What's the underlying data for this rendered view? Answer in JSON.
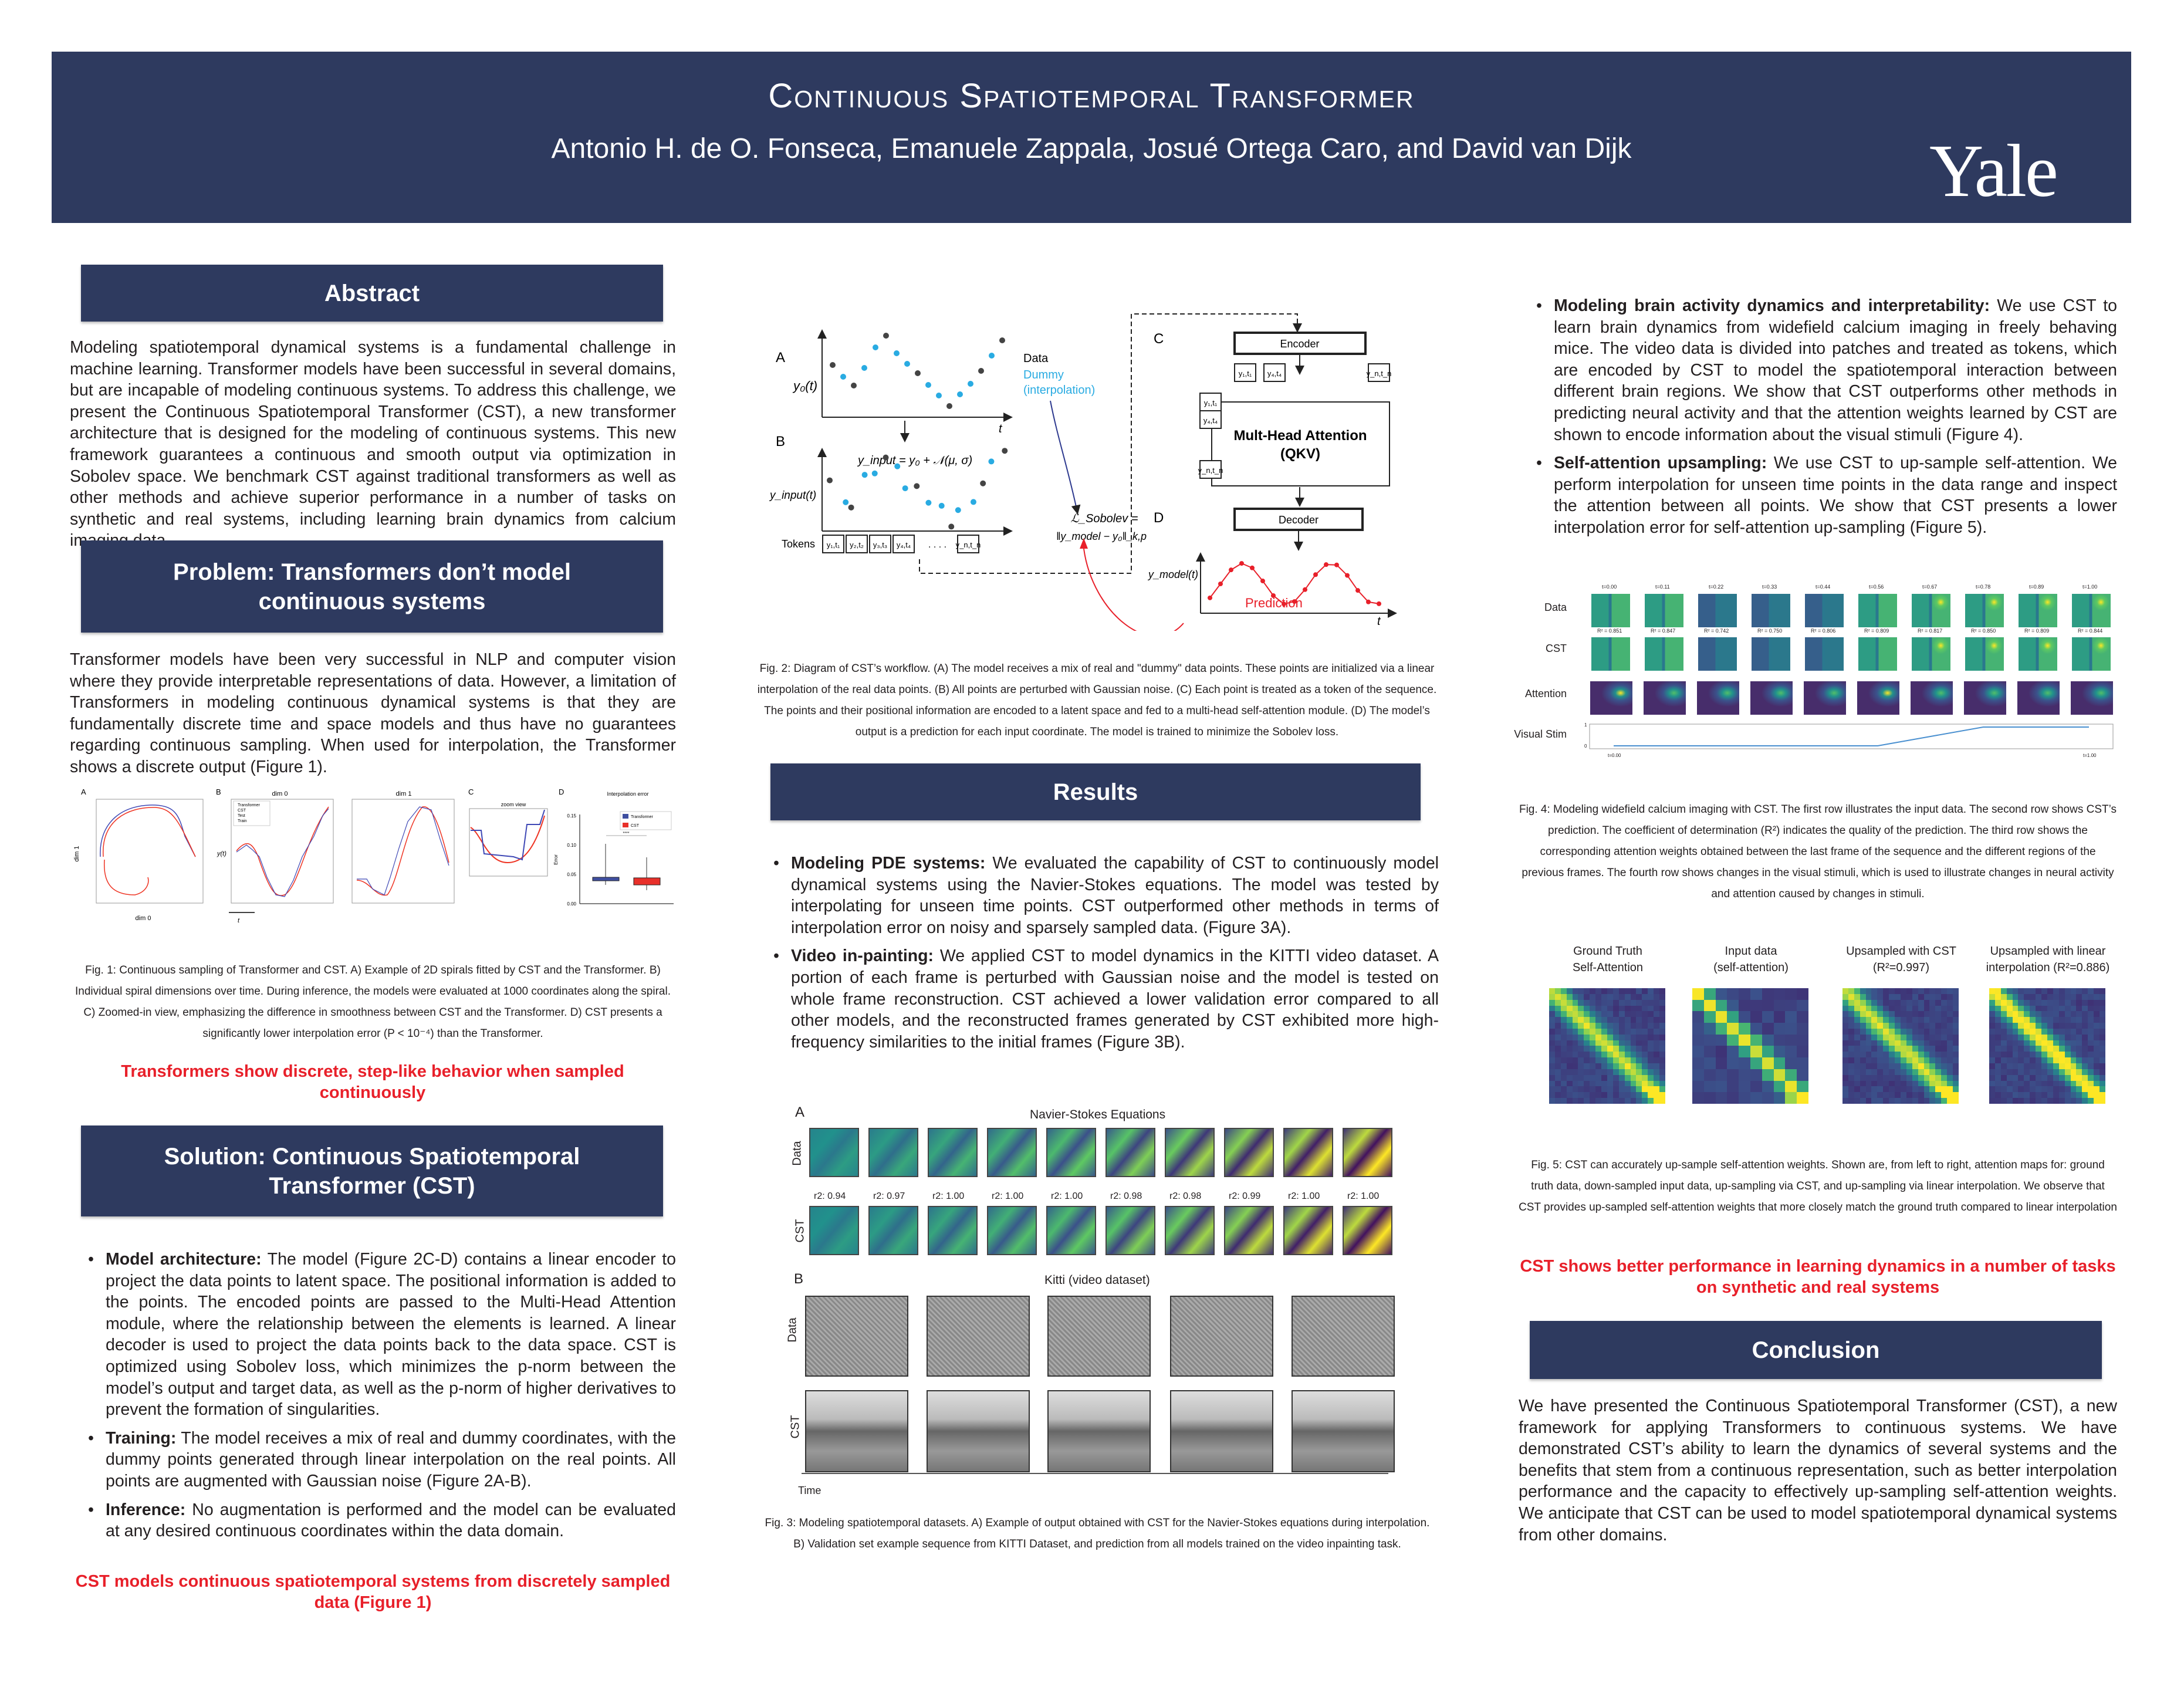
{
  "header": {
    "title": "Continuous Spatiotemporal Transformer",
    "authors": "Antonio H. de O. Fonseca, Emanuele Zappala, Josué Ortega Caro, and David van Dijk",
    "logo": "Yale"
  },
  "colors": {
    "header": "#2e3a5f",
    "highlight": "#e8202a",
    "dummy": "#29abe2"
  },
  "abstract": {
    "heading": "Abstract",
    "text": "Modeling spatiotemporal dynamical systems is a fundamental challenge in machine learning. Transformer models have been successful in several domains, but are incapable of modeling continuous systems. To address this challenge, we present the Continuous Spatiotemporal Transformer (CST), a new transformer architecture that is designed for the modeling of continuous systems. This new framework guarantees a continuous and smooth output via optimization in Sobolev space. We benchmark CST against traditional transformers as well as other methods and achieve superior performance in a number of tasks on synthetic and real systems, including learning brain dynamics from calcium imaging data."
  },
  "problem": {
    "heading": "Problem: Transformers don’t model continuous systems",
    "text": "Transformer models have been very successful in NLP and computer vision where they provide interpretable representations of data. However, a limitation of Transformers in modeling continuous dynamical systems is that they are fundamentally discrete time and space models and thus have no guarantees regarding continuous sampling. When used for interpolation, the Transformer shows a discrete output (Figure 1).",
    "highlight": "Transformers show discrete, step-like behavior when sampled continuously"
  },
  "fig1": {
    "panel_a": "A",
    "panel_b": "B",
    "panel_c": "C",
    "panel_d": "D",
    "a_xlabel": "dim 0",
    "a_ylabel": "dim 1",
    "b_title0": "dim 0",
    "b_title1": "dim 1",
    "b_ylabel": "y(t)",
    "b_xlabel": "t",
    "legend": [
      "Transformer",
      "CST",
      "Test",
      "Train"
    ],
    "c_title": "zoom view",
    "d_title": "Interpolation error",
    "d_ylabel": "Error",
    "d_ticks": [
      "0.15",
      "0.10",
      "0.05",
      "0.00"
    ],
    "d_legend": [
      "Transformer",
      "CST"
    ],
    "d_sig": "****",
    "caption": "Fig. 1: Continuous sampling of Transformer and CST. A) Example of 2D spirals fitted by CST and the Transformer. B) Individual spiral dimensions over time. During inference, the models were evaluated at 1000 coordinates along the spiral. C) Zoomed-in view, emphasizing the difference in smoothness between CST and the Transformer. D) CST presents a significantly lower interpolation error (P < 10⁻⁴) than the Transformer."
  },
  "solution": {
    "heading": "Solution: Continuous Spatiotemporal Transformer (CST)",
    "bullets": [
      {
        "title": "Model architecture:",
        "text": "The model (Figure 2C-D) contains a linear encoder to project the data points to latent space. The positional information is added to the points. The encoded points are passed to the Multi-Head Attention module, where the relationship between the elements is learned. A linear decoder is used to project the data points back to the data space. CST is optimized using Sobolev loss, which minimizes the p-norm between the model’s output and target data, as well as the p-norm of higher derivatives to prevent the formation of singularities."
      },
      {
        "title": "Training:",
        "text": "The model receives a mix of real and dummy coordinates, with the dummy points generated through linear interpolation on the real points. All points are augmented with Gaussian noise (Figure 2A-B)."
      },
      {
        "title": "Inference:",
        "text": "No augmentation is performed and the model can be evaluated at any desired continuous coordinates within the data domain."
      }
    ],
    "highlight": "CST models continuous spatiotemporal systems from discretely sampled data (Figure 1)"
  },
  "fig2": {
    "a": "A",
    "b": "B",
    "c": "C",
    "d": "D",
    "y0": "y₀(t)",
    "t": "t",
    "data": "Data",
    "dummy": "Dummy",
    "interp": "(interpolation)",
    "eq": "y_input = y₀ + 𝒩(μ, σ)",
    "yinput": "y_input(t)",
    "tokens": "Tokens",
    "token_labels": [
      "y₁,t₁",
      "y₂,t₂",
      "y₃,t₃",
      "y₄,t₄",
      "y_n,t_n"
    ],
    "dots": ". . . .",
    "encoder": "Encoder",
    "mha": "Mult-Head Attention",
    "qkv": "(QKV)",
    "decoder": "Decoder",
    "loss1": "ℒ_Sobolev =",
    "loss2": "‖y_model − y₀‖_k,p",
    "ymodel": "y_model(t)",
    "prediction": "Prediction",
    "caption": "Fig. 2: Diagram of CST’s workflow. (A) The model receives a mix of real and \"dummy\" data points. These points are initialized via a linear interpolation of the real data points. (B) All points are perturbed with Gaussian noise. (C) Each point is treated as a token of the sequence. The points and their positional information are encoded to a latent space and fed to a multi-head self-attention module. (D) The model’s output is a prediction for each input coordinate. The model is trained to minimize the Sobolev loss."
  },
  "results": {
    "heading": "Results",
    "bullets": [
      {
        "title": "Modeling PDE systems:",
        "text": "We evaluated the capability of CST to continuously model dynamical systems using the Navier-Stokes equations. The model was tested by interpolating for unseen time points. CST outperformed other methods in terms of interpolation error on noisy and sparsely sampled data. (Figure 3A)."
      },
      {
        "title": "Video in-painting:",
        "text": "We applied CST to model dynamics in the KITTI video dataset. A portion of each frame is perturbed with Gaussian noise and the model is tested on whole frame reconstruction. CST achieved a lower validation error compared to all other models, and the reconstructed frames generated by CST exhibited more high-frequency similarities to the initial frames (Figure 3B)."
      },
      {
        "title": "Modeling brain activity dynamics and interpretability:",
        "text": "We use CST to learn brain dynamics from widefield calcium imaging in freely behaving mice. The video data is divided into patches and treated as tokens, which are encoded by CST to model the spatiotemporal interaction between different brain regions. We show that CST outperforms other methods in predicting neural activity and that the attention weights learned by CST are shown to encode information about the visual stimuli (Figure 4)."
      },
      {
        "title": "Self-attention upsampling:",
        "text": "We use CST to up-sample self-attention. We perform interpolation for unseen time points in the data range and inspect the attention between all points. We show that CST presents a lower interpolation error for self-attention up-sampling (Figure 5)."
      }
    ],
    "highlight": "CST shows better performance in learning dynamics in a number of tasks on synthetic and real systems"
  },
  "fig3": {
    "a": "A",
    "a_title": "Navier-Stokes Equations",
    "row_data": "Data",
    "row_cst": "CST",
    "r2": [
      "r2: 0.94",
      "r2: 0.97",
      "r2: 1.00",
      "r2: 1.00",
      "r2: 1.00",
      "r2: 0.98",
      "r2: 0.98",
      "r2: 0.99",
      "r2: 1.00",
      "r2: 1.00"
    ],
    "b": "B",
    "b_title": "Kitti (video dataset)",
    "time": "Time",
    "caption": "Fig. 3: Modeling spatiotemporal datasets. A) Example of output obtained with CST for the Navier-Stokes equations during interpolation. B) Validation set example sequence from KITTI Dataset, and prediction from all models trained on the video inpainting task."
  },
  "fig4": {
    "rows": [
      "Data",
      "CST",
      "Attention",
      "Visual Stim"
    ],
    "times": [
      "t=0.00",
      "t=0.11",
      "t=0.22",
      "t=0.33",
      "t=0.44",
      "t=0.56",
      "t=0.67",
      "t=0.78",
      "t=0.89",
      "t=1.00"
    ],
    "r2": [
      "R² = 0.851",
      "R² = 0.847",
      "R² = 0.742",
      "R² = 0.750",
      "R² = 0.806",
      "R² = 0.809",
      "R² = 0.817",
      "R² = 0.850",
      "R² = 0.809",
      "R² = 0.844"
    ],
    "stim_start": "t=0.00",
    "stim_end": "t=1.00",
    "stim_y": [
      "1",
      "0"
    ],
    "stim_values": [
      0,
      0,
      0,
      0,
      0,
      0,
      0.5,
      1,
      1,
      1
    ],
    "caption": "Fig. 4: Modeling widefield calcium imaging with CST. The first row illustrates the input data. The second row shows CST’s prediction. The coefficient of determination (R²) indicates the quality of the prediction. The third row shows the corresponding attention weights obtained between the last frame of the sequence and the different regions of the previous frames. The fourth row shows changes in the visual stimuli, which is used to illustrate changes in neural activity and attention caused by changes in stimuli."
  },
  "fig5": {
    "titles": [
      [
        "Ground Truth",
        "Self-Attention"
      ],
      [
        "Input data",
        "(self-attention)"
      ],
      [
        "Upsampled with CST",
        "(R²=0.997)"
      ],
      [
        "Upsampled with linear",
        "interpolation (R²=0.886)"
      ]
    ],
    "caption": "Fig. 5: CST can accurately up-sample self-attention weights. Shown are, from left to right, attention maps for: ground truth data, down-sampled input data, up-sampling via CST, and up-sampling via linear interpolation. We observe that CST provides up-sampled self-attention weights that more closely match the ground truth compared to linear interpolation"
  },
  "conclusion": {
    "heading": "Conclusion",
    "text": "We have presented the Continuous Spatiotemporal Transformer (CST), a new framework for applying Transformers to continuous systems. We have demonstrated CST’s ability to learn the dynamics of several systems and the benefits that stem from a continuous representation, such as better interpolation performance and the capacity to effectively up-sampling self-attention weights. We anticipate that CST can be used to model spatiotemporal dynamical systems from other domains."
  }
}
